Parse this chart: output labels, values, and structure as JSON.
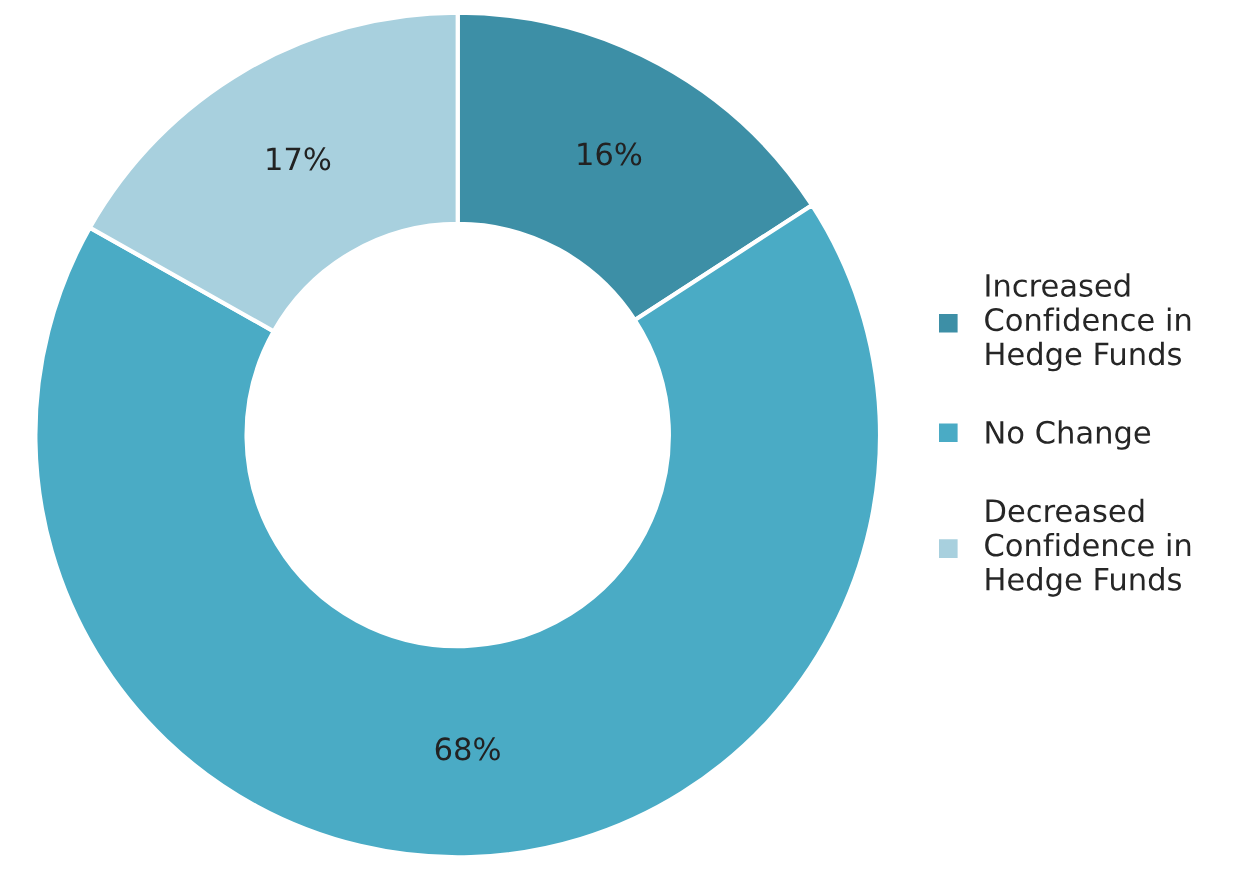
{
  "chart_data": {
    "type": "donut",
    "categories": [
      "Increased\nConfidence in\nHedge Funds",
      "No Change",
      "Decreased\nConfidence in\nHedge Funds"
    ],
    "values": [
      16,
      68,
      17
    ],
    "colors": [
      "#3d8fa6",
      "#4aabc5",
      "#a8d0de"
    ],
    "value_labels": [
      "16%",
      "68%",
      "17%"
    ],
    "legend": "right"
  }
}
